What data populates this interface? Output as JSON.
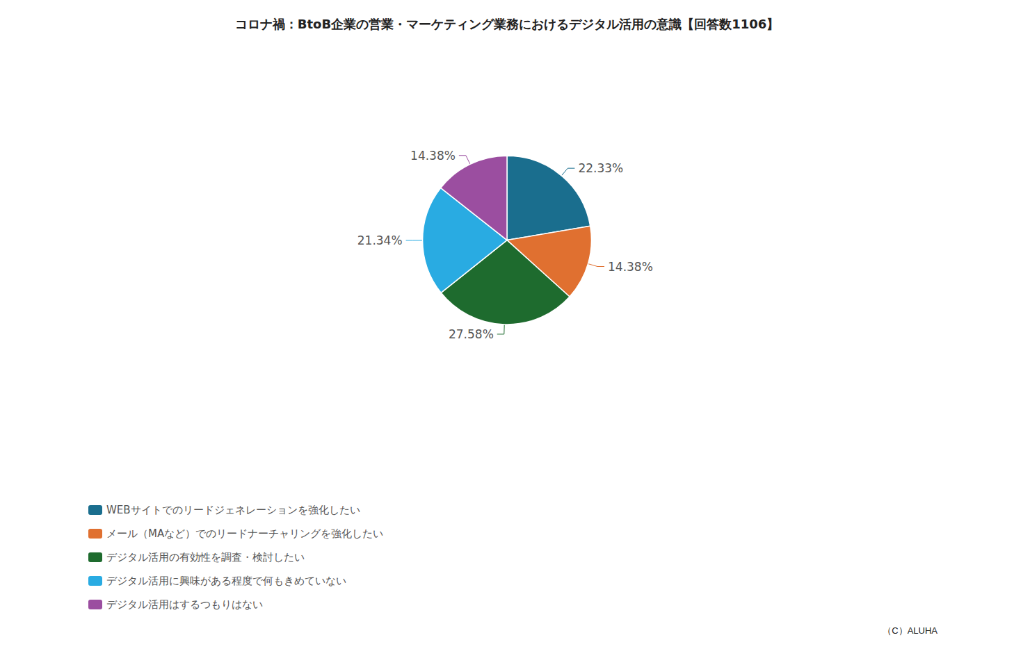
{
  "chart_data": {
    "type": "pie",
    "title": "コロナ禍：BtoB企業の営業・マーケティング業務におけるデジタル活用の意識【回答数1106】",
    "categories": [
      "WEBサイトでのリードジェネレーションを強化したい",
      "メール（MAなど）でのリードナーチャリングを強化したい",
      "デジタル活用の有効性を調査・検討したい",
      "デジタル活用に興味がある程度で何もきめていない",
      "デジタル活用はするつもりはない"
    ],
    "values": [
      22.33,
      14.38,
      27.58,
      21.34,
      14.38
    ],
    "value_labels": [
      "22.33%",
      "14.38%",
      "27.58%",
      "21.34%",
      "14.38%"
    ],
    "colors": [
      "#1a6e8e",
      "#e07030",
      "#1e6b2e",
      "#29abe2",
      "#9b4ea0"
    ],
    "data_labels": true,
    "legend": "bottom",
    "annotations": [
      "（C）ALUHA"
    ]
  }
}
